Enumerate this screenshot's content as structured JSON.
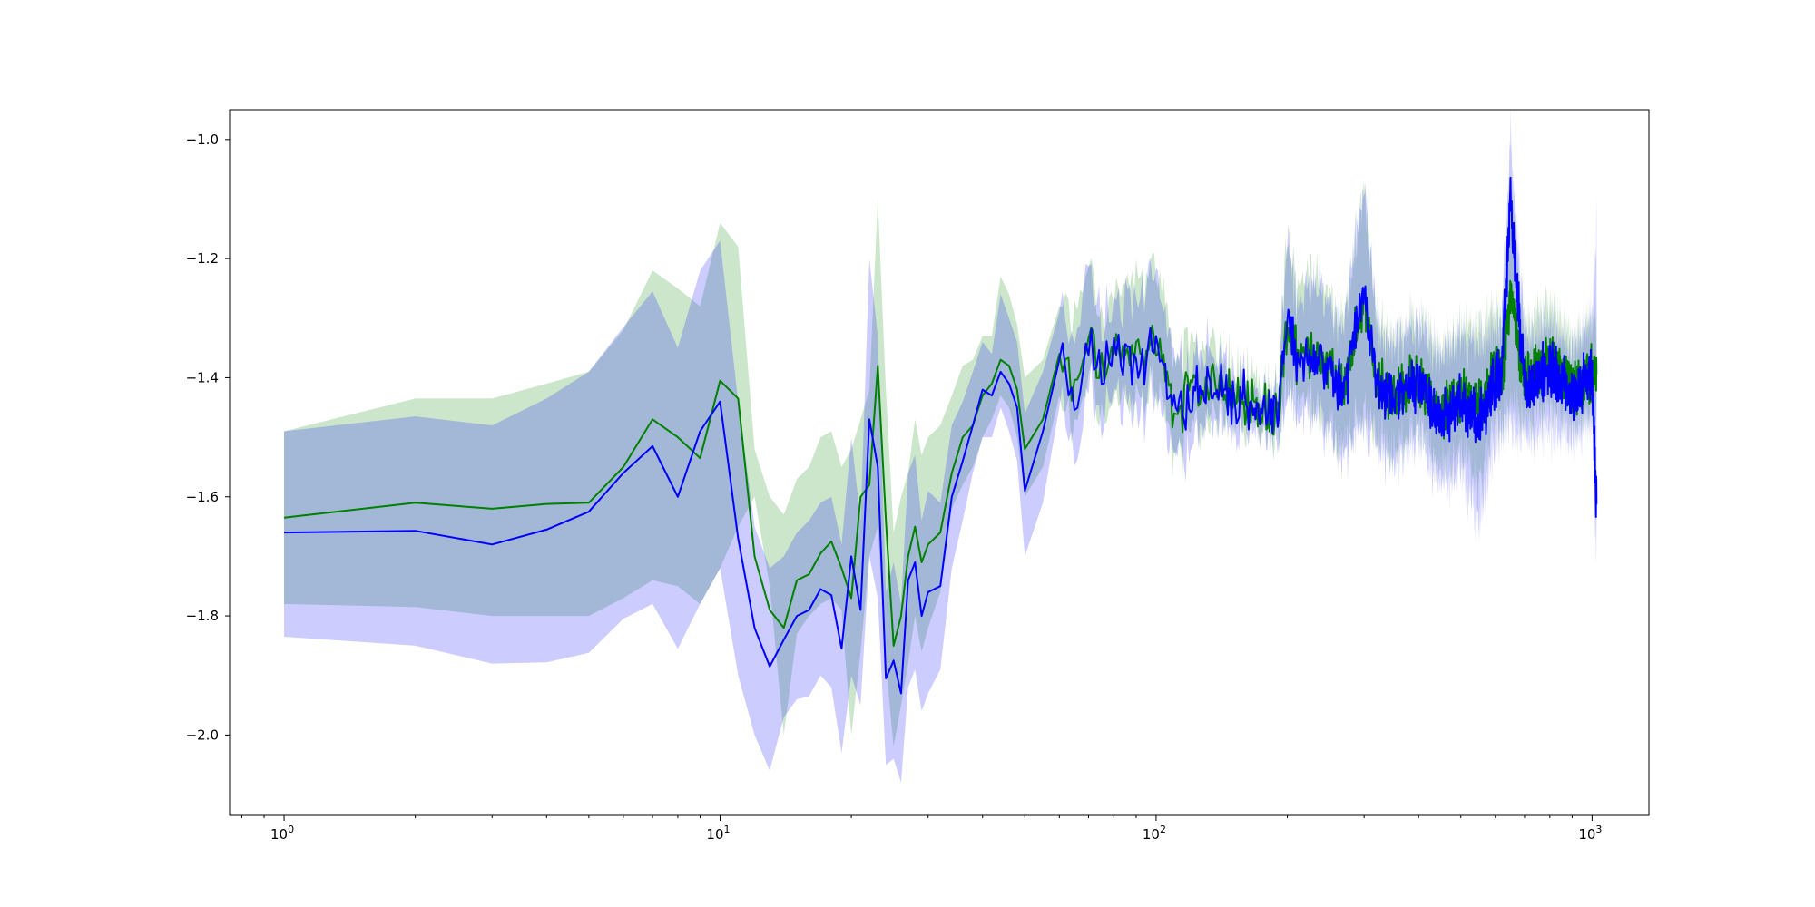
{
  "chart_data": {
    "type": "line",
    "title": "",
    "xlabel": "",
    "ylabel": "",
    "xscale": "log",
    "xlim": [
      0.75,
      1350
    ],
    "ylim": [
      -2.135,
      -0.95
    ],
    "grid": false,
    "legend": "none",
    "y_ticks": [
      {
        "value": -2.0,
        "label": "−2.0"
      },
      {
        "value": -1.8,
        "label": "−1.8"
      },
      {
        "value": -1.6,
        "label": "−1.6"
      },
      {
        "value": -1.4,
        "label": "−1.4"
      },
      {
        "value": -1.2,
        "label": "−1.2"
      },
      {
        "value": -1.0,
        "label": "−1.0"
      }
    ],
    "x_ticks": [
      {
        "value": 1,
        "base": "10",
        "exp": "0"
      },
      {
        "value": 10,
        "base": "10",
        "exp": "1"
      },
      {
        "value": 100,
        "base": "10",
        "exp": "2"
      },
      {
        "value": 1000,
        "base": "10",
        "exp": "3"
      }
    ],
    "x_anchors": [
      1,
      2,
      3,
      4,
      5,
      6,
      7,
      8,
      9,
      10,
      11,
      12,
      13,
      14,
      15,
      16,
      17,
      18,
      19,
      20,
      21,
      22,
      23,
      24,
      25,
      26,
      27,
      28,
      29,
      30,
      32,
      34,
      36,
      38,
      40,
      42,
      44,
      46,
      48,
      50,
      55,
      60,
      65,
      70,
      75,
      80,
      90,
      100,
      110,
      120,
      130,
      150,
      170,
      190,
      200,
      210,
      230,
      250,
      270,
      300,
      320,
      350,
      400,
      450,
      500,
      550,
      600,
      620,
      650,
      700,
      800,
      900,
      1000,
      1024
    ],
    "series": [
      {
        "color": "#008000",
        "band_color": "#008000",
        "values": [
          -1.635,
          -1.61,
          -1.62,
          -1.612,
          -1.61,
          -1.55,
          -1.47,
          -1.5,
          -1.535,
          -1.405,
          -1.435,
          -1.7,
          -1.79,
          -1.82,
          -1.74,
          -1.73,
          -1.695,
          -1.675,
          -1.72,
          -1.77,
          -1.6,
          -1.58,
          -1.38,
          -1.64,
          -1.85,
          -1.8,
          -1.7,
          -1.65,
          -1.71,
          -1.68,
          -1.66,
          -1.56,
          -1.5,
          -1.48,
          -1.43,
          -1.41,
          -1.37,
          -1.38,
          -1.42,
          -1.52,
          -1.47,
          -1.36,
          -1.42,
          -1.33,
          -1.39,
          -1.36,
          -1.37,
          -1.33,
          -1.45,
          -1.43,
          -1.41,
          -1.43,
          -1.44,
          -1.46,
          -1.3,
          -1.37,
          -1.36,
          -1.38,
          -1.42,
          -1.26,
          -1.41,
          -1.43,
          -1.4,
          -1.46,
          -1.43,
          -1.45,
          -1.39,
          -1.4,
          -1.26,
          -1.41,
          -1.37,
          -1.42,
          -1.39,
          -1.38
        ],
        "lower": [
          -1.78,
          -1.785,
          -1.8,
          -1.8,
          -1.8,
          -1.77,
          -1.74,
          -1.75,
          -1.78,
          -1.72,
          -1.65,
          -1.6,
          -1.75,
          -2.0,
          -1.83,
          -1.8,
          -1.78,
          -1.77,
          -1.79,
          -2.0,
          -1.86,
          -1.7,
          -1.65,
          -1.88,
          -2.02,
          -1.95,
          -1.88,
          -1.8,
          -1.86,
          -1.82,
          -1.76,
          -1.62,
          -1.58,
          -1.55,
          -1.5,
          -1.47,
          -1.43,
          -1.45,
          -1.5,
          -1.6,
          -1.55,
          -1.43,
          -1.5,
          -1.4,
          -1.47,
          -1.44,
          -1.45,
          -1.41,
          -1.52,
          -1.5,
          -1.47,
          -1.47,
          -1.47,
          -1.5,
          -1.4,
          -1.45,
          -1.45,
          -1.48,
          -1.52,
          -1.45,
          -1.5,
          -1.52,
          -1.48,
          -1.55,
          -1.52,
          -1.58,
          -1.47,
          -1.48,
          -1.45,
          -1.48,
          -1.45,
          -1.48,
          -1.46,
          -1.45
        ],
        "upper": [
          -1.49,
          -1.435,
          -1.435,
          -1.41,
          -1.39,
          -1.32,
          -1.22,
          -1.25,
          -1.28,
          -1.14,
          -1.18,
          -1.52,
          -1.6,
          -1.63,
          -1.57,
          -1.55,
          -1.5,
          -1.49,
          -1.55,
          -1.52,
          -1.47,
          -1.42,
          -1.1,
          -1.42,
          -1.66,
          -1.6,
          -1.56,
          -1.47,
          -1.53,
          -1.5,
          -1.48,
          -1.43,
          -1.38,
          -1.37,
          -1.33,
          -1.33,
          -1.23,
          -1.26,
          -1.31,
          -1.4,
          -1.37,
          -1.28,
          -1.3,
          -1.2,
          -1.29,
          -1.27,
          -1.25,
          -1.2,
          -1.36,
          -1.36,
          -1.34,
          -1.38,
          -1.4,
          -1.42,
          -1.15,
          -1.26,
          -1.22,
          -1.26,
          -1.3,
          -1.08,
          -1.3,
          -1.33,
          -1.3,
          -1.35,
          -1.32,
          -1.32,
          -1.3,
          -1.3,
          -1.08,
          -1.32,
          -1.28,
          -1.34,
          -1.3,
          -1.29
        ]
      },
      {
        "color": "#0000ff",
        "band_color": "#0000ff",
        "values": [
          -1.66,
          -1.657,
          -1.68,
          -1.655,
          -1.625,
          -1.56,
          -1.515,
          -1.6,
          -1.49,
          -1.44,
          -1.67,
          -1.82,
          -1.885,
          -1.84,
          -1.8,
          -1.79,
          -1.755,
          -1.765,
          -1.855,
          -1.7,
          -1.79,
          -1.47,
          -1.55,
          -1.905,
          -1.875,
          -1.93,
          -1.74,
          -1.71,
          -1.8,
          -1.76,
          -1.75,
          -1.6,
          -1.54,
          -1.48,
          -1.42,
          -1.43,
          -1.39,
          -1.41,
          -1.45,
          -1.59,
          -1.49,
          -1.37,
          -1.44,
          -1.34,
          -1.39,
          -1.36,
          -1.38,
          -1.34,
          -1.47,
          -1.43,
          -1.42,
          -1.43,
          -1.45,
          -1.46,
          -1.29,
          -1.38,
          -1.37,
          -1.38,
          -1.43,
          -1.24,
          -1.42,
          -1.43,
          -1.41,
          -1.47,
          -1.44,
          -1.48,
          -1.4,
          -1.4,
          -1.1,
          -1.42,
          -1.38,
          -1.43,
          -1.4,
          -1.63
        ],
        "lower": [
          -1.835,
          -1.85,
          -1.88,
          -1.878,
          -1.862,
          -1.805,
          -1.78,
          -1.855,
          -1.78,
          -1.72,
          -1.9,
          -2.0,
          -2.06,
          -1.97,
          -1.94,
          -1.935,
          -1.9,
          -1.92,
          -2.03,
          -1.9,
          -1.95,
          -1.7,
          -1.77,
          -2.05,
          -2.04,
          -2.08,
          -1.92,
          -1.89,
          -1.96,
          -1.93,
          -1.89,
          -1.72,
          -1.64,
          -1.56,
          -1.5,
          -1.5,
          -1.45,
          -1.49,
          -1.54,
          -1.7,
          -1.61,
          -1.45,
          -1.52,
          -1.41,
          -1.48,
          -1.44,
          -1.46,
          -1.42,
          -1.55,
          -1.51,
          -1.48,
          -1.48,
          -1.48,
          -1.51,
          -1.42,
          -1.47,
          -1.46,
          -1.5,
          -1.54,
          -1.47,
          -1.52,
          -1.54,
          -1.5,
          -1.58,
          -1.55,
          -1.65,
          -1.5,
          -1.5,
          -1.48,
          -1.5,
          -1.48,
          -1.5,
          -1.48,
          -1.72
        ],
        "upper": [
          -1.49,
          -1.465,
          -1.48,
          -1.435,
          -1.39,
          -1.315,
          -1.255,
          -1.35,
          -1.22,
          -1.17,
          -1.44,
          -1.65,
          -1.72,
          -1.7,
          -1.66,
          -1.64,
          -1.61,
          -1.6,
          -1.68,
          -1.5,
          -1.64,
          -1.2,
          -1.33,
          -1.76,
          -1.71,
          -1.78,
          -1.56,
          -1.53,
          -1.64,
          -1.59,
          -1.61,
          -1.48,
          -1.44,
          -1.39,
          -1.34,
          -1.36,
          -1.26,
          -1.3,
          -1.34,
          -1.46,
          -1.39,
          -1.29,
          -1.33,
          -1.21,
          -1.3,
          -1.28,
          -1.27,
          -1.22,
          -1.38,
          -1.37,
          -1.35,
          -1.39,
          -1.41,
          -1.43,
          -1.16,
          -1.28,
          -1.24,
          -1.27,
          -1.32,
          -1.06,
          -1.32,
          -1.34,
          -1.31,
          -1.36,
          -1.33,
          -1.35,
          -1.31,
          -1.31,
          -1.0,
          -1.33,
          -1.3,
          -1.35,
          -1.31,
          -1.15
        ]
      }
    ]
  }
}
